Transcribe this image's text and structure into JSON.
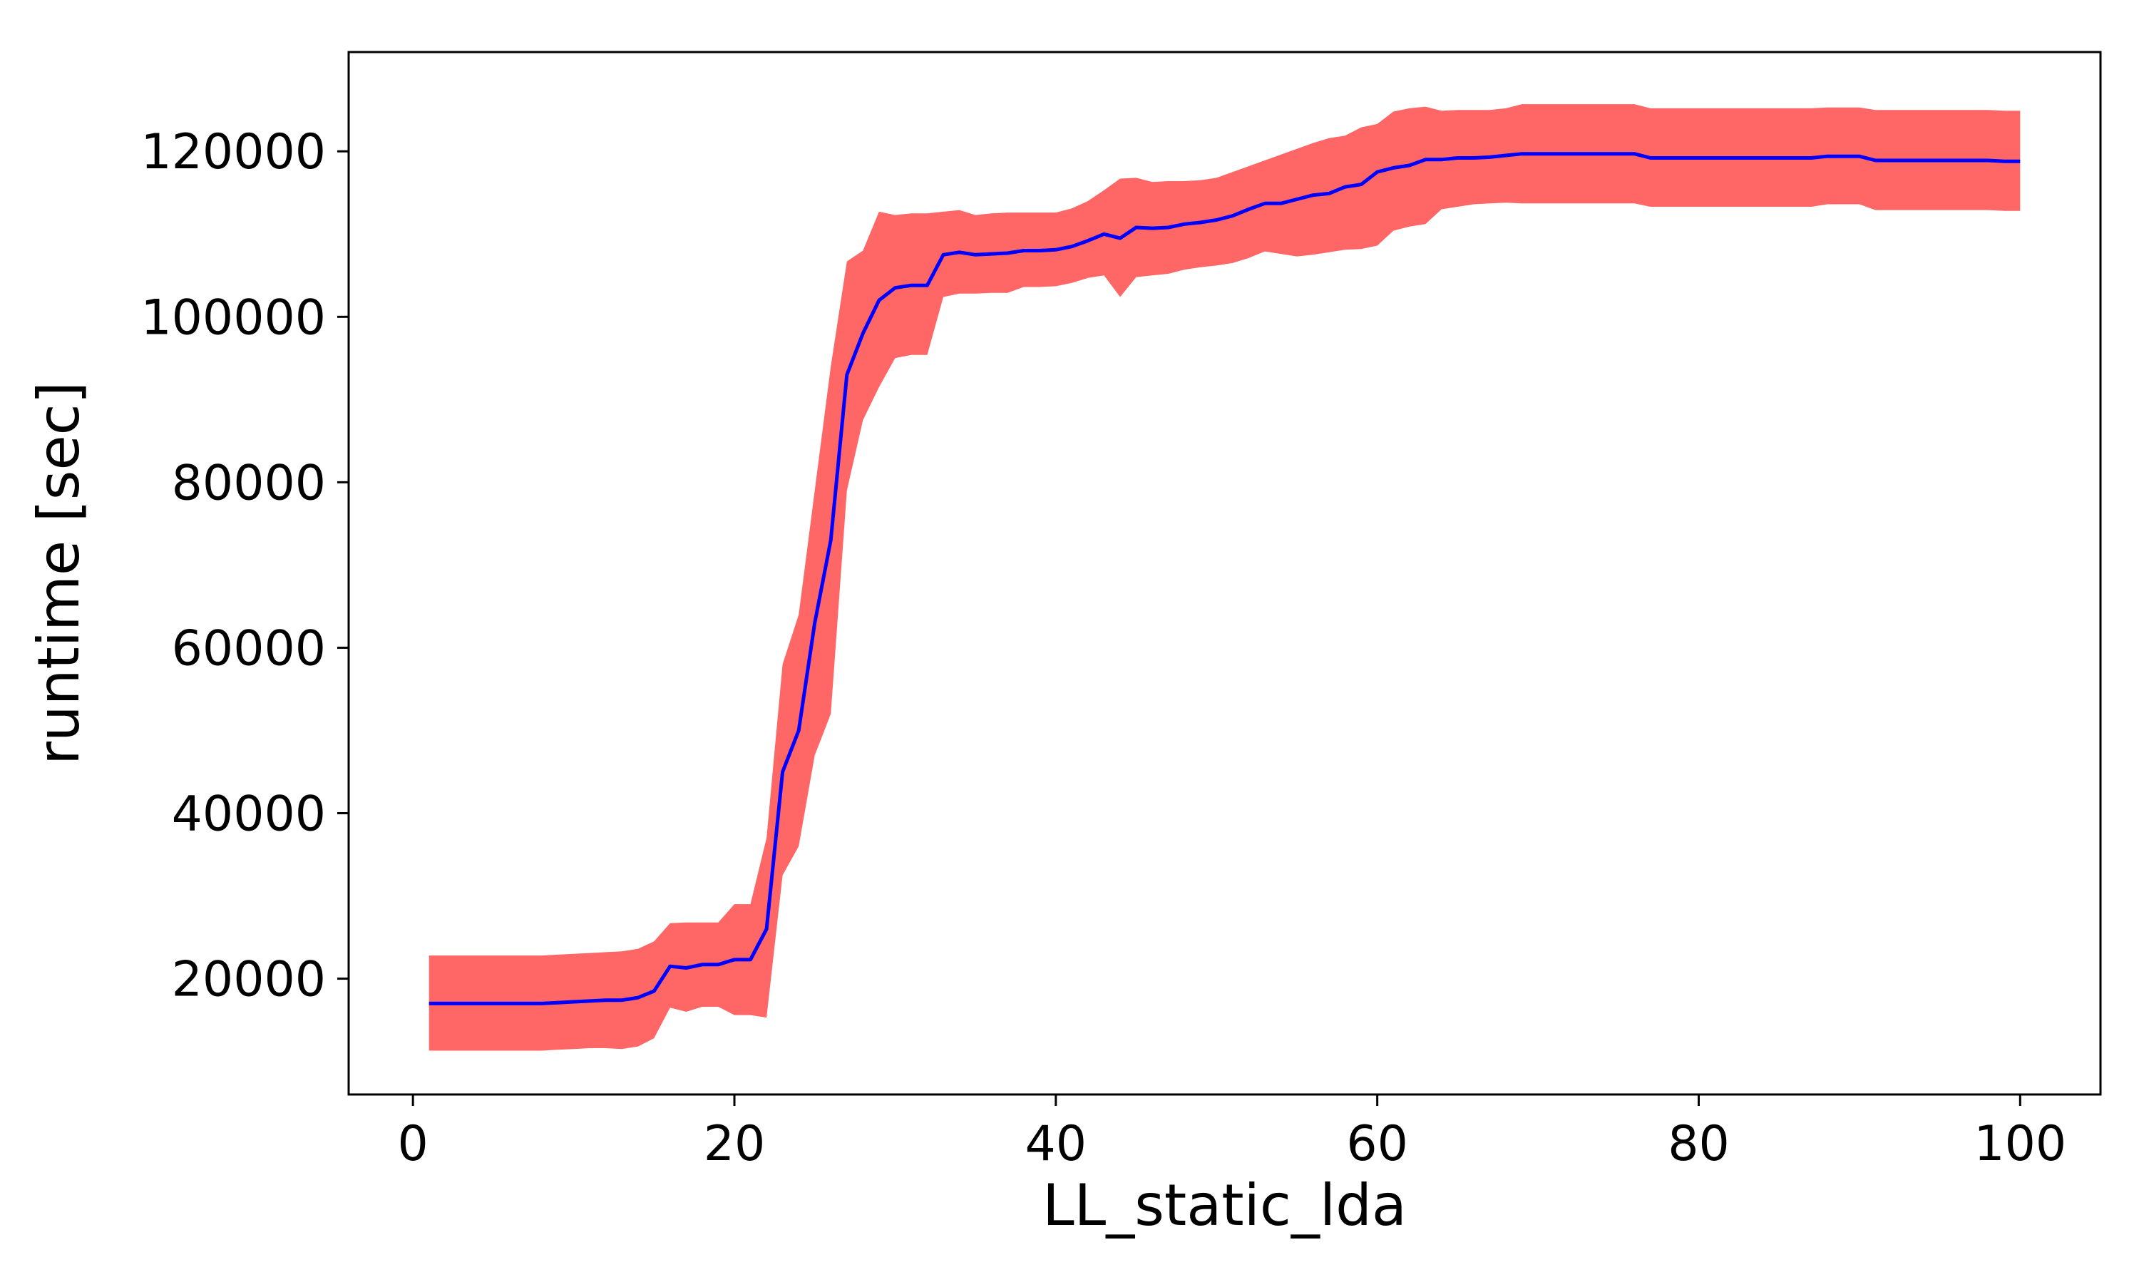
{
  "chart_data": {
    "type": "line",
    "xlabel": "LL_static_lda",
    "ylabel": "runtime [sec]",
    "xlim": [
      -4,
      105
    ],
    "ylim": [
      6000,
      132000
    ],
    "xticks": [
      0,
      20,
      40,
      60,
      80,
      100
    ],
    "yticks": [
      20000,
      40000,
      60000,
      80000,
      100000,
      120000
    ],
    "grid": false,
    "legend": "none",
    "colors": {
      "mean_line": "#0000ff",
      "band": "#ff6666"
    },
    "series": [
      {
        "role": "mean",
        "x": [
          1,
          2,
          3,
          4,
          5,
          6,
          7,
          8,
          9,
          10,
          11,
          12,
          13,
          14,
          15,
          16,
          17,
          18,
          19,
          20,
          21,
          22,
          23,
          24,
          25,
          26,
          27,
          28,
          29,
          30,
          31,
          32,
          33,
          34,
          35,
          36,
          37,
          38,
          39,
          40,
          41,
          42,
          43,
          44,
          45,
          46,
          47,
          48,
          49,
          50,
          51,
          52,
          53,
          54,
          55,
          56,
          57,
          58,
          59,
          60,
          61,
          62,
          63,
          64,
          65,
          66,
          67,
          68,
          69,
          70,
          71,
          72,
          73,
          74,
          75,
          76,
          77,
          78,
          79,
          80,
          81,
          82,
          83,
          84,
          85,
          86,
          87,
          88,
          89,
          90,
          91,
          92,
          93,
          94,
          95,
          96,
          97,
          98,
          99,
          100
        ],
        "values": [
          17000,
          17000,
          17000,
          17000,
          17000,
          17000,
          17000,
          17000,
          17100,
          17200,
          17300,
          17400,
          17400,
          17700,
          18500,
          21500,
          21300,
          21700,
          21700,
          22300,
          22300,
          26000,
          45000,
          50000,
          63000,
          73000,
          93000,
          98000,
          102000,
          103500,
          103800,
          103800,
          107500,
          107800,
          107500,
          107600,
          107700,
          108000,
          108000,
          108100,
          108500,
          109200,
          110000,
          109500,
          110800,
          110700,
          110800,
          111200,
          111400,
          111700,
          112200,
          113000,
          113700,
          113700,
          114200,
          114700,
          114900,
          115700,
          116000,
          117500,
          118000,
          118300,
          119000,
          119000,
          119200,
          119200,
          119300,
          119500,
          119700,
          119700,
          119700,
          119700,
          119700,
          119700,
          119700,
          119700,
          119200,
          119200,
          119200,
          119200,
          119200,
          119200,
          119200,
          119200,
          119200,
          119200,
          119200,
          119400,
          119400,
          119400,
          118900,
          118900,
          118900,
          118900,
          118900,
          118900,
          118900,
          118900,
          118800,
          118800
        ]
      },
      {
        "role": "band_upper",
        "x": [
          1,
          2,
          3,
          4,
          5,
          6,
          7,
          8,
          9,
          10,
          11,
          12,
          13,
          14,
          15,
          16,
          17,
          18,
          19,
          20,
          21,
          22,
          23,
          24,
          25,
          26,
          27,
          28,
          29,
          30,
          31,
          32,
          33,
          34,
          35,
          36,
          37,
          38,
          39,
          40,
          41,
          42,
          43,
          44,
          45,
          46,
          47,
          48,
          49,
          50,
          51,
          52,
          53,
          54,
          55,
          56,
          57,
          58,
          59,
          60,
          61,
          62,
          63,
          64,
          65,
          66,
          67,
          68,
          69,
          70,
          71,
          72,
          73,
          74,
          75,
          76,
          77,
          78,
          79,
          80,
          81,
          82,
          83,
          84,
          85,
          86,
          87,
          88,
          89,
          90,
          91,
          92,
          93,
          94,
          95,
          96,
          97,
          98,
          99,
          100
        ],
        "values": [
          22800,
          22800,
          22800,
          22800,
          22800,
          22800,
          22800,
          22800,
          22900,
          23000,
          23100,
          23200,
          23300,
          23600,
          24500,
          26700,
          26800,
          26800,
          26800,
          29000,
          29000,
          37000,
          58000,
          64000,
          79000,
          94000,
          106700,
          108000,
          112700,
          112300,
          112500,
          112500,
          112700,
          112900,
          112300,
          112500,
          112600,
          112600,
          112600,
          112600,
          113100,
          114000,
          115300,
          116700,
          116800,
          116300,
          116400,
          116400,
          116500,
          116800,
          117500,
          118200,
          118900,
          119600,
          120300,
          121000,
          121600,
          121900,
          122900,
          123300,
          124800,
          125200,
          125400,
          124900,
          125000,
          125000,
          125000,
          125200,
          125700,
          125700,
          125700,
          125700,
          125700,
          125700,
          125700,
          125700,
          125200,
          125200,
          125200,
          125200,
          125200,
          125200,
          125200,
          125200,
          125200,
          125200,
          125200,
          125300,
          125300,
          125300,
          125000,
          125000,
          125000,
          125000,
          125000,
          125000,
          125000,
          125000,
          124900,
          124900
        ]
      },
      {
        "role": "band_lower",
        "x": [
          1,
          2,
          3,
          4,
          5,
          6,
          7,
          8,
          9,
          10,
          11,
          12,
          13,
          14,
          15,
          16,
          17,
          18,
          19,
          20,
          21,
          22,
          23,
          24,
          25,
          26,
          27,
          28,
          29,
          30,
          31,
          32,
          33,
          34,
          35,
          36,
          37,
          38,
          39,
          40,
          41,
          42,
          43,
          44,
          45,
          46,
          47,
          48,
          49,
          50,
          51,
          52,
          53,
          54,
          55,
          56,
          57,
          58,
          59,
          60,
          61,
          62,
          63,
          64,
          65,
          66,
          67,
          68,
          69,
          70,
          71,
          72,
          73,
          74,
          75,
          76,
          77,
          78,
          79,
          80,
          81,
          82,
          83,
          84,
          85,
          86,
          87,
          88,
          89,
          90,
          91,
          92,
          93,
          94,
          95,
          96,
          97,
          98,
          99,
          100
        ],
        "values": [
          11300,
          11300,
          11300,
          11300,
          11300,
          11300,
          11300,
          11300,
          11400,
          11500,
          11600,
          11600,
          11500,
          11800,
          12800,
          16500,
          16000,
          16600,
          16600,
          15600,
          15600,
          15300,
          32500,
          36000,
          47000,
          52000,
          79000,
          87500,
          91500,
          95000,
          95400,
          95400,
          102400,
          102800,
          102800,
          102900,
          102900,
          103600,
          103600,
          103700,
          104100,
          104700,
          105000,
          102400,
          104800,
          105000,
          105200,
          105700,
          106000,
          106200,
          106500,
          107100,
          107900,
          107600,
          107300,
          107500,
          107800,
          108100,
          108200,
          108600,
          110400,
          110900,
          111200,
          113000,
          113300,
          113600,
          113700,
          113800,
          113700,
          113700,
          113700,
          113700,
          113700,
          113700,
          113700,
          113700,
          113300,
          113300,
          113300,
          113300,
          113300,
          113300,
          113300,
          113300,
          113300,
          113300,
          113300,
          113600,
          113600,
          113600,
          112900,
          112900,
          112900,
          112900,
          112900,
          112900,
          112900,
          112900,
          112800,
          112800
        ]
      }
    ]
  }
}
